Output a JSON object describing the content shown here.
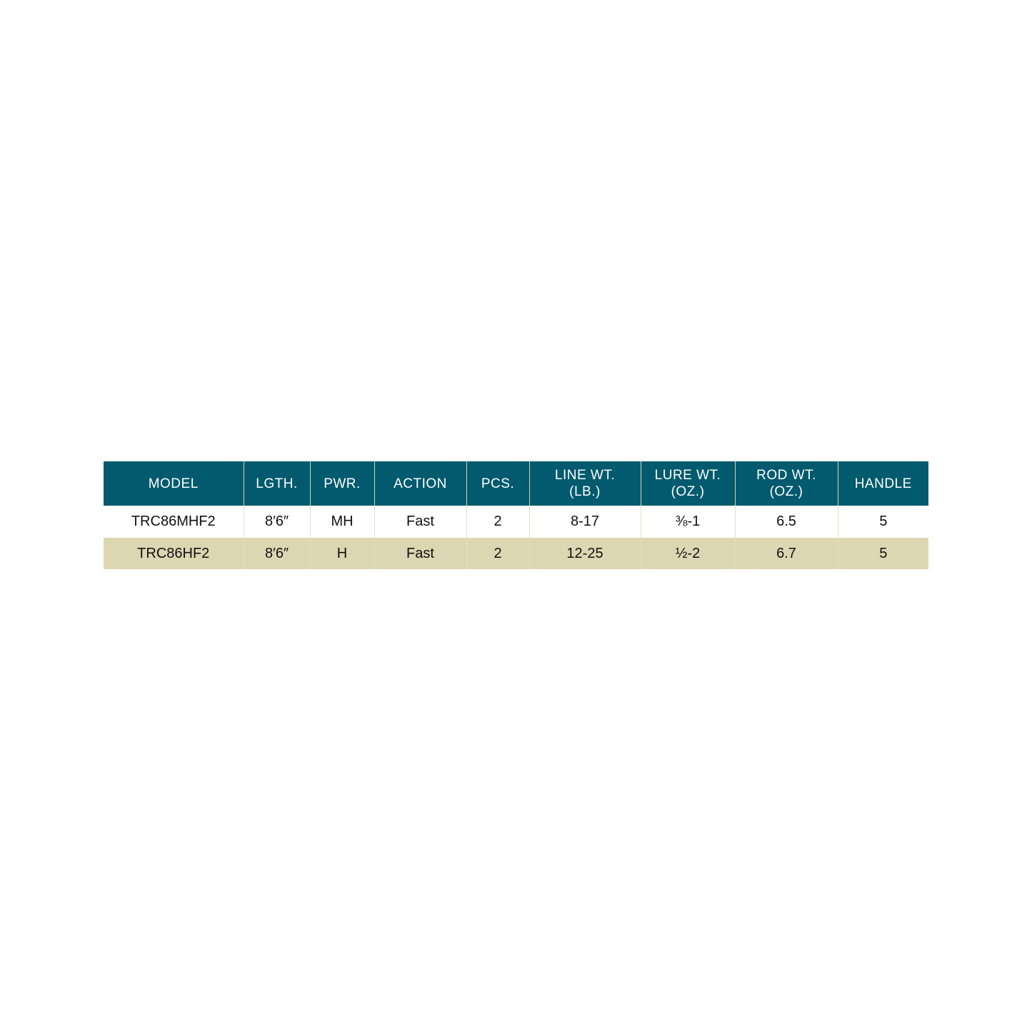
{
  "table": {
    "headers": [
      "MODEL",
      "LGTH.",
      "PWR.",
      "ACTION",
      "PCS.",
      "LINE WT.\n(LB.)",
      "LURE WT.\n(OZ.)",
      "ROD WT.\n(OZ.)",
      "HANDLE"
    ],
    "header_lines": [
      [
        "MODEL"
      ],
      [
        "LGTH."
      ],
      [
        "PWR."
      ],
      [
        "ACTION"
      ],
      [
        "PCS."
      ],
      [
        "LINE WT.",
        "(LB.)"
      ],
      [
        "LURE WT.",
        "(OZ.)"
      ],
      [
        "ROD WT.",
        "(OZ.)"
      ],
      [
        "HANDLE"
      ]
    ],
    "rows": [
      [
        "TRC86MHF2",
        "8′6″",
        "MH",
        "Fast",
        "2",
        "8-17",
        "⅜-1",
        "6.5",
        "5"
      ],
      [
        "TRC86HF2",
        "8′6″",
        "H",
        "Fast",
        "2",
        "12-25",
        "½-2",
        "6.7",
        "5"
      ]
    ],
    "colors": {
      "header": "#015a6d",
      "alt_row": "#ddd6b2"
    }
  }
}
